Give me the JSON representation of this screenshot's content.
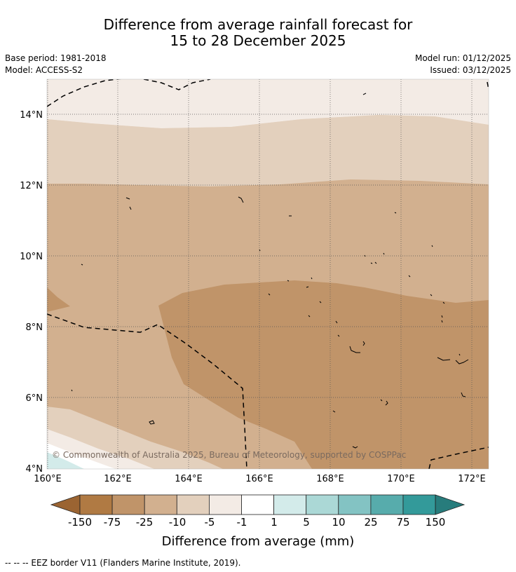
{
  "header": {
    "title_line1": "Difference from average rainfall forecast for",
    "title_line2": "15 to 28 December 2025",
    "base_period": "Base period: 1981-2018",
    "model": "Model: ACCESS-S2",
    "model_run": "Model run: 01/12/2025",
    "issued": "Issued: 03/12/2025"
  },
  "map": {
    "lat_labels": [
      "14°N",
      "12°N",
      "10°N",
      "8°N",
      "6°N",
      "4°N"
    ],
    "lon_labels": [
      "160°E",
      "162°E",
      "164°E",
      "166°E",
      "168°E",
      "170°E",
      "172°E"
    ],
    "copyright": "© Commonwealth of Australia 2025, Bureau of Meteorology, supported by COSPPac"
  },
  "colorbar": {
    "title": "Difference from average (mm)",
    "labels": [
      "-150",
      "-75",
      "-25",
      "-10",
      "-5",
      "-1",
      "1",
      "5",
      "10",
      "25",
      "75",
      "150"
    ],
    "colors": [
      "#9b6432",
      "#b07a43",
      "#c09469",
      "#d2b08f",
      "#e3d0bd",
      "#f3ebe5",
      "#ffffff",
      "#d3ebea",
      "#abd8d6",
      "#83c3c3",
      "#57acac",
      "#339a9a",
      "#277c7c"
    ]
  },
  "footnote": "-- -- -- EEZ border V11 (Flanders Marine Institute, 2019)."
}
